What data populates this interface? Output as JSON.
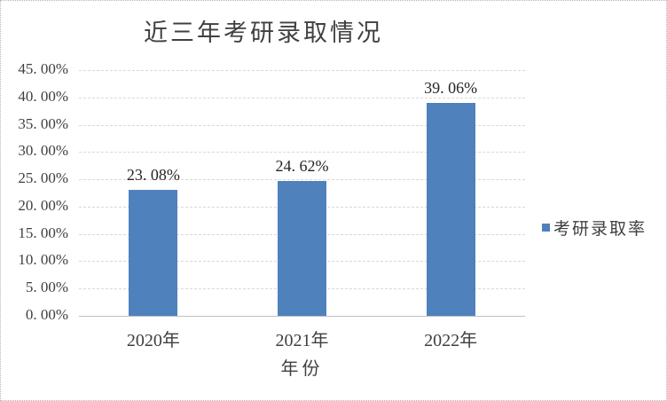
{
  "chart": {
    "title": "近三年考研录取情况",
    "x_axis_title": "年份",
    "legend": {
      "label": "考研录取率",
      "marker_color": "#4f81bd"
    },
    "colors": {
      "bar": "#4f81bd",
      "axis_text": "#3f3f3f",
      "data_label_text": "#262626",
      "gridline": "#d9d9d9",
      "axis_line": "#bfbfbf",
      "frame_border": "#b5b5b5",
      "background": "#ffffff"
    }
  },
  "chart_data": {
    "type": "bar",
    "title": "近三年考研录取情况",
    "categories": [
      "2020年",
      "2021年",
      "2022年"
    ],
    "series": [
      {
        "name": "考研录取率",
        "values": [
          23.08,
          24.62,
          39.06
        ]
      }
    ],
    "data_labels": [
      "23. 08%",
      "24. 62%",
      "39. 06%"
    ],
    "y_tick_labels": [
      "45. 00%",
      "40. 00%",
      "35. 00%",
      "30. 00%",
      "25. 00%",
      "20. 00%",
      "15. 00%",
      "10. 00%",
      "5. 00%",
      "0. 00%"
    ],
    "y_tick_values": [
      45,
      40,
      35,
      30,
      25,
      20,
      15,
      10,
      5,
      0
    ],
    "xlabel": "年份",
    "ylabel": "",
    "ylim": [
      0,
      45
    ],
    "y_tick_step": 5,
    "grid": true,
    "legend_position": "right"
  }
}
